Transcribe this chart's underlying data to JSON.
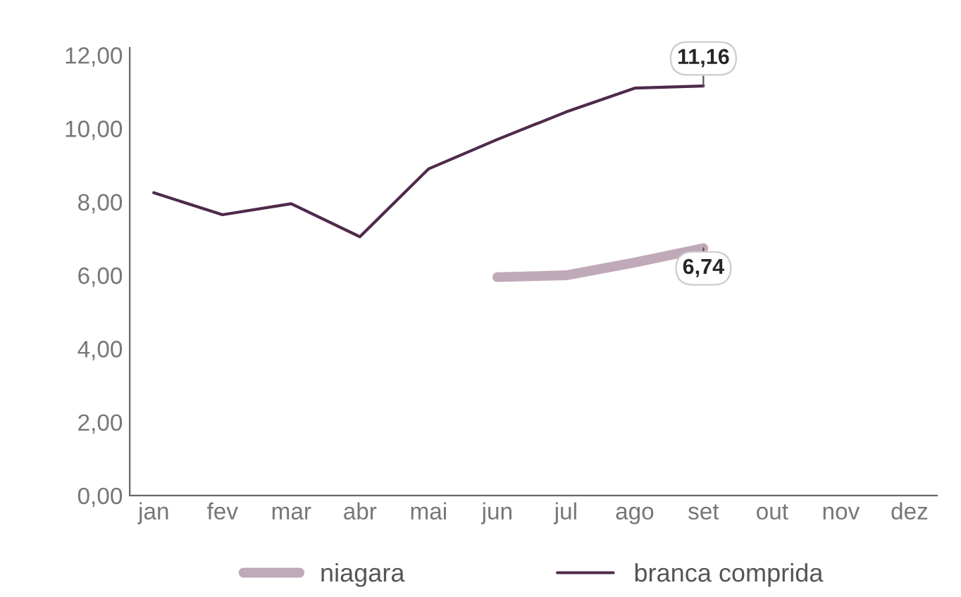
{
  "chart_data": {
    "type": "line",
    "categories": [
      "jan",
      "fev",
      "mar",
      "abr",
      "mai",
      "jun",
      "jul",
      "ago",
      "set",
      "out",
      "nov",
      "dez"
    ],
    "series": [
      {
        "name": "niagara",
        "color": "#c0a9b9",
        "values": [
          null,
          null,
          null,
          null,
          null,
          5.95,
          6.0,
          6.35,
          6.74,
          null,
          null,
          null
        ],
        "value_labels": [
          null,
          null,
          null,
          null,
          null,
          null,
          null,
          null,
          "6,74",
          null,
          null,
          null
        ]
      },
      {
        "name": "branca comprida",
        "color": "#4f2a4a",
        "values": [
          8.25,
          7.65,
          7.95,
          7.05,
          8.9,
          9.7,
          10.45,
          11.1,
          11.16,
          null,
          null,
          null
        ],
        "value_labels": [
          null,
          null,
          null,
          null,
          null,
          null,
          null,
          null,
          "11,16",
          null,
          null,
          null
        ]
      }
    ],
    "ylim": [
      0,
      12.2
    ],
    "yticks": [
      {
        "value": 0,
        "label": "0,00"
      },
      {
        "value": 2,
        "label": "2,00"
      },
      {
        "value": 4,
        "label": "4,00"
      },
      {
        "value": 6,
        "label": "6,00"
      },
      {
        "value": 8,
        "label": "8,00"
      },
      {
        "value": 10,
        "label": "10,00"
      },
      {
        "value": 12,
        "label": "12,00"
      }
    ],
    "legend": "bottom",
    "grid": false,
    "marker": "none",
    "line_style": "solid"
  }
}
